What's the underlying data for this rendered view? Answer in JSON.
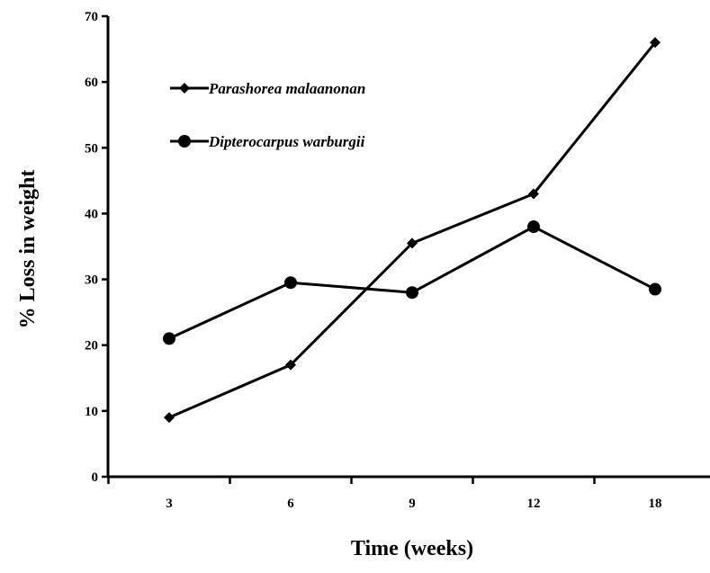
{
  "chart_data": {
    "type": "line",
    "title": "",
    "xlabel": "Time (weeks)",
    "ylabel": "% Loss in weight",
    "categories": [
      "3",
      "6",
      "9",
      "12",
      "18"
    ],
    "ylim": [
      0,
      70
    ],
    "yticks": [
      "0",
      "10",
      "20",
      "30",
      "40",
      "50",
      "60",
      "70"
    ],
    "grid": false,
    "legend": "top-left",
    "series": [
      {
        "name": "Parashorea malaanonan",
        "marker": "diamond",
        "color": "#000000",
        "values": [
          9,
          17,
          35.5,
          43,
          66
        ]
      },
      {
        "name": "Dipterocarpus warburgii",
        "marker": "circle",
        "color": "#000000",
        "values": [
          21,
          29.5,
          28,
          38,
          28.5
        ]
      }
    ]
  }
}
